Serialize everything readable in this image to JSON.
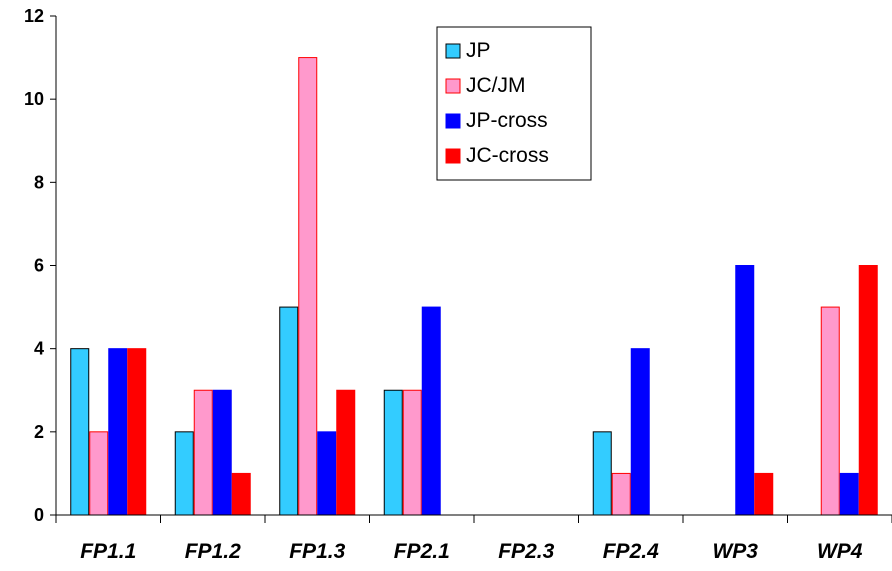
{
  "chart_data": {
    "type": "bar",
    "categories": [
      "FP1.1",
      "FP1.2",
      "FP1.3",
      "FP2.1",
      "FP2.3",
      "FP2.4",
      "WP3",
      "WP4"
    ],
    "series": [
      {
        "name": "JP",
        "color": "#33CCFF",
        "values": [
          4,
          2,
          5,
          3,
          0,
          2,
          0,
          0
        ]
      },
      {
        "name": "JC/JM",
        "color": "#FF99CC",
        "values": [
          2,
          3,
          11,
          3,
          0,
          1,
          0,
          5
        ]
      },
      {
        "name": "JP-cross",
        "color": "#0000FF",
        "values": [
          4,
          3,
          2,
          5,
          0,
          4,
          6,
          1
        ]
      },
      {
        "name": "JC-cross",
        "color": "#FF0000",
        "values": [
          4,
          1,
          3,
          0,
          0,
          0,
          1,
          6
        ]
      }
    ],
    "y_ticks": [
      "0",
      "2",
      "4",
      "6",
      "8",
      "10",
      "12"
    ],
    "ylim": [
      0,
      12
    ],
    "grid": false,
    "legend_position": "top-center",
    "bar_outline_colors": {
      "JP": "#000000",
      "JC/JM": "#FF0000",
      "JP-cross": "#0000FF",
      "JC-cross": "#FF0000"
    }
  }
}
